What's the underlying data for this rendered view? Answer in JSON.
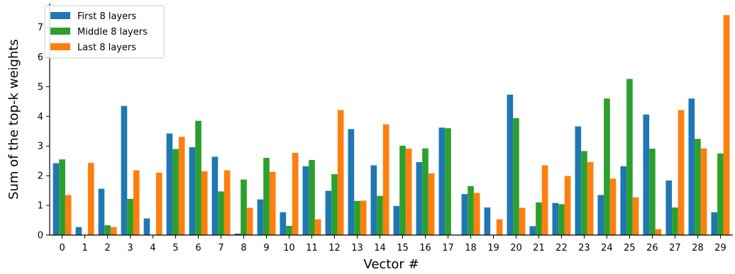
{
  "chart_data": {
    "type": "bar",
    "xlabel": "Vector #",
    "ylabel": "Sum of the top-k weights",
    "categories": [
      "0",
      "1",
      "2",
      "3",
      "4",
      "5",
      "6",
      "7",
      "8",
      "9",
      "10",
      "11",
      "12",
      "13",
      "14",
      "15",
      "16",
      "17",
      "18",
      "19",
      "20",
      "21",
      "22",
      "23",
      "24",
      "25",
      "26",
      "27",
      "28",
      "29"
    ],
    "ylim": [
      0,
      7.8
    ],
    "yticks": [
      0,
      1,
      2,
      3,
      4,
      5,
      6,
      7
    ],
    "legend_position": "top-left",
    "grid": false,
    "series": [
      {
        "name": "First 8 layers",
        "color": "#1f77b4",
        "values": [
          2.42,
          0.27,
          1.56,
          4.35,
          0.56,
          3.42,
          2.96,
          2.64,
          0.05,
          1.2,
          0.77,
          2.32,
          1.49,
          3.57,
          2.35,
          0.98,
          2.46,
          3.62,
          1.38,
          0.93,
          4.73,
          0.3,
          1.08,
          3.66,
          1.35,
          2.32,
          4.06,
          1.84,
          4.6,
          0.77
        ]
      },
      {
        "name": "Middle 8 layers",
        "color": "#2ca02c",
        "values": [
          2.55,
          0.0,
          0.33,
          1.22,
          0.0,
          2.9,
          3.85,
          1.47,
          1.87,
          2.6,
          0.31,
          2.53,
          2.05,
          1.15,
          1.32,
          3.01,
          2.92,
          3.6,
          1.65,
          0.0,
          3.94,
          1.1,
          1.04,
          2.83,
          4.6,
          5.26,
          2.91,
          0.93,
          3.24,
          2.75
        ]
      },
      {
        "name": "Last 8 layers",
        "color": "#ff7f0e",
        "values": [
          1.35,
          2.43,
          0.27,
          2.18,
          2.1,
          3.31,
          2.15,
          2.18,
          0.92,
          2.13,
          2.77,
          0.53,
          4.21,
          1.16,
          3.73,
          2.91,
          2.08,
          0.0,
          1.42,
          0.53,
          0.92,
          2.35,
          1.99,
          2.46,
          1.9,
          1.27,
          0.2,
          4.21,
          2.92,
          7.41
        ]
      }
    ]
  }
}
